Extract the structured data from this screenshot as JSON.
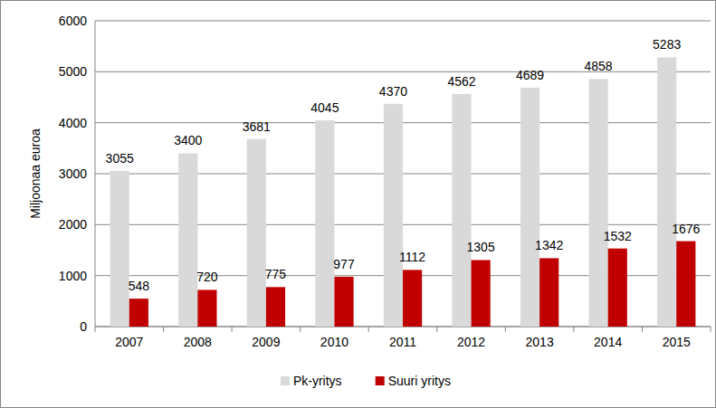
{
  "chart_data": {
    "type": "bar",
    "y_label": "Miljoonaa euroa",
    "categories": [
      "2007",
      "2008",
      "2009",
      "2010",
      "2011",
      "2012",
      "2013",
      "2014",
      "2015"
    ],
    "series": [
      {
        "name": "Pk-yritys",
        "color": "#d9d9d9",
        "values": [
          3055,
          3400,
          3681,
          4045,
          4370,
          4562,
          4689,
          4858,
          5283
        ]
      },
      {
        "name": "Suuri yritys",
        "color": "#c00000",
        "values": [
          548,
          720,
          775,
          977,
          1112,
          1305,
          1342,
          1532,
          1676
        ]
      }
    ],
    "ylim": [
      0,
      6000
    ],
    "yticks": [
      0,
      1000,
      2000,
      3000,
      4000,
      5000,
      6000
    ],
    "grid": true,
    "data_labels": true,
    "legend": "bottom"
  }
}
